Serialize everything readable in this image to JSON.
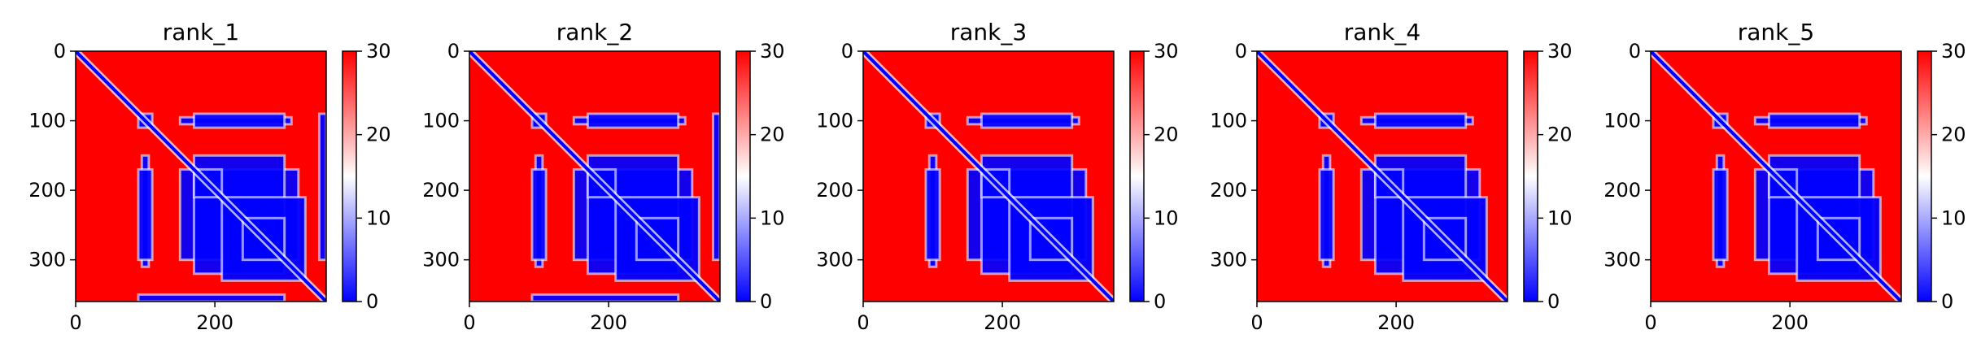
{
  "chart_data": [
    {
      "type": "heatmap",
      "title": "rank_1",
      "xlabel": "",
      "ylabel": "",
      "xlim": [
        0,
        360
      ],
      "ylim": [
        360,
        0
      ],
      "xticks": [
        0,
        200
      ],
      "yticks": [
        0,
        100,
        200,
        300
      ],
      "colorbar": {
        "min": 0,
        "max": 30,
        "ticks": [
          0,
          10,
          20,
          30
        ],
        "colors": [
          "#0000ff",
          "#ffffff",
          "#ff0000"
        ]
      },
      "blocks": [
        [
          90,
          110
        ],
        [
          170,
          210
        ],
        [
          210,
          330
        ],
        [
          240,
          300
        ]
      ],
      "low_regions": [
        [
          95,
          105,
          150,
          310
        ],
        [
          170,
          300,
          90,
          110
        ],
        [
          170,
          300,
          150,
          320
        ],
        [
          350,
          360,
          90,
          300
        ]
      ]
    },
    {
      "type": "heatmap",
      "title": "rank_2",
      "xlabel": "",
      "ylabel": "",
      "xlim": [
        0,
        360
      ],
      "ylim": [
        360,
        0
      ],
      "xticks": [
        0,
        200
      ],
      "yticks": [
        0,
        100,
        200,
        300
      ],
      "colorbar": {
        "min": 0,
        "max": 30,
        "ticks": [
          0,
          10,
          20,
          30
        ],
        "colors": [
          "#0000ff",
          "#ffffff",
          "#ff0000"
        ]
      },
      "blocks": [
        [
          90,
          110
        ],
        [
          170,
          210
        ],
        [
          210,
          330
        ],
        [
          240,
          300
        ]
      ],
      "low_regions": [
        [
          95,
          105,
          150,
          310
        ],
        [
          170,
          300,
          90,
          110
        ],
        [
          170,
          300,
          150,
          320
        ],
        [
          350,
          360,
          90,
          300
        ]
      ]
    },
    {
      "type": "heatmap",
      "title": "rank_3",
      "xlabel": "",
      "ylabel": "",
      "xlim": [
        0,
        360
      ],
      "ylim": [
        360,
        0
      ],
      "xticks": [
        0,
        200
      ],
      "yticks": [
        0,
        100,
        200,
        300
      ],
      "colorbar": {
        "min": 0,
        "max": 30,
        "ticks": [
          0,
          10,
          20,
          30
        ],
        "colors": [
          "#0000ff",
          "#ffffff",
          "#ff0000"
        ]
      },
      "blocks": [
        [
          90,
          110
        ],
        [
          170,
          210
        ],
        [
          210,
          330
        ],
        [
          240,
          300
        ]
      ],
      "low_regions": [
        [
          95,
          105,
          150,
          310
        ],
        [
          170,
          300,
          90,
          110
        ],
        [
          170,
          300,
          150,
          320
        ]
      ]
    },
    {
      "type": "heatmap",
      "title": "rank_4",
      "xlabel": "",
      "ylabel": "",
      "xlim": [
        0,
        360
      ],
      "ylim": [
        360,
        0
      ],
      "xticks": [
        0,
        200
      ],
      "yticks": [
        0,
        100,
        200,
        300
      ],
      "colorbar": {
        "min": 0,
        "max": 30,
        "ticks": [
          0,
          10,
          20,
          30
        ],
        "colors": [
          "#0000ff",
          "#ffffff",
          "#ff0000"
        ]
      },
      "blocks": [
        [
          90,
          110
        ],
        [
          170,
          210
        ],
        [
          210,
          330
        ],
        [
          240,
          300
        ]
      ],
      "low_regions": [
        [
          95,
          105,
          150,
          310
        ],
        [
          170,
          300,
          90,
          110
        ],
        [
          170,
          300,
          150,
          320
        ]
      ]
    },
    {
      "type": "heatmap",
      "title": "rank_5",
      "xlabel": "",
      "ylabel": "",
      "xlim": [
        0,
        360
      ],
      "ylim": [
        360,
        0
      ],
      "xticks": [
        0,
        200
      ],
      "yticks": [
        0,
        100,
        200,
        300
      ],
      "colorbar": {
        "min": 0,
        "max": 30,
        "ticks": [
          0,
          10,
          20,
          30
        ],
        "colors": [
          "#0000ff",
          "#ffffff",
          "#ff0000"
        ]
      },
      "blocks": [
        [
          90,
          110
        ],
        [
          170,
          210
        ],
        [
          210,
          330
        ],
        [
          240,
          300
        ]
      ],
      "low_regions": [
        [
          95,
          105,
          150,
          310
        ],
        [
          170,
          300,
          90,
          110
        ],
        [
          170,
          300,
          150,
          320
        ]
      ]
    }
  ]
}
